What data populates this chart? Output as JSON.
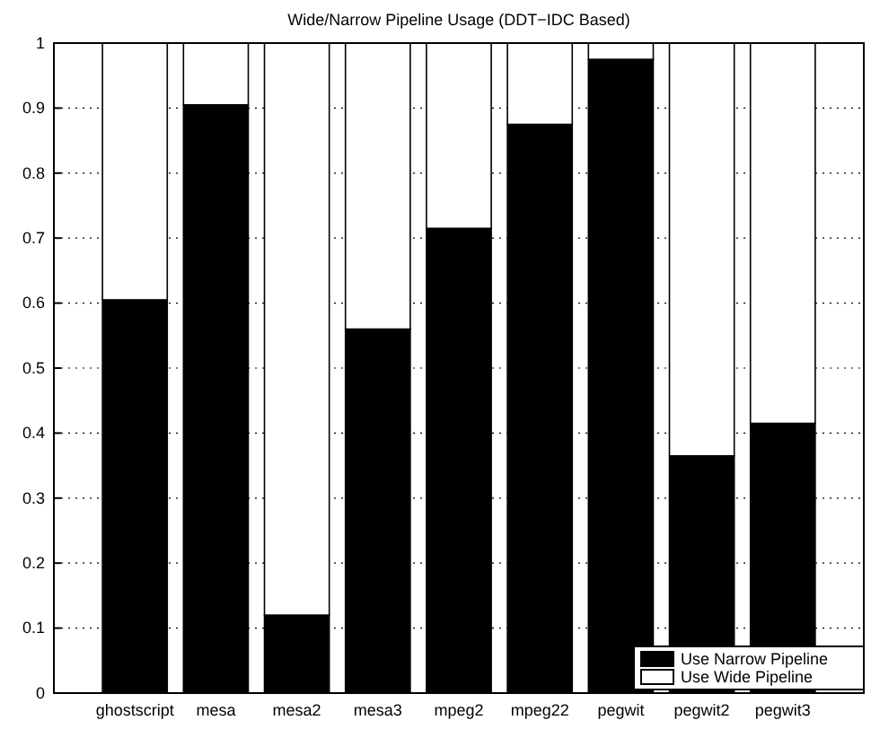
{
  "chart_data": {
    "type": "bar",
    "title": "Wide/Narrow Pipeline Usage (DDT−IDC Based)",
    "categories": [
      "ghostscript",
      "mesa",
      "mesa2",
      "mesa3",
      "mpeg2",
      "mpeg22",
      "pegwit",
      "pegwit2",
      "pegwit3"
    ],
    "stacked": true,
    "series": [
      {
        "name": "Use Narrow Pipeline",
        "color": "#000000",
        "values": [
          0.605,
          0.905,
          0.12,
          0.56,
          0.715,
          0.875,
          0.975,
          0.365,
          0.415
        ]
      },
      {
        "name": "Use Wide Pipeline",
        "color": "#ffffff",
        "values": [
          0.395,
          0.095,
          0.88,
          0.44,
          0.285,
          0.125,
          0.025,
          0.635,
          0.585
        ]
      }
    ],
    "ylim": [
      0,
      1
    ],
    "yticks": [
      0,
      0.1,
      0.2,
      0.3,
      0.4,
      0.5,
      0.6,
      0.7,
      0.8,
      0.9,
      1
    ],
    "grid": "y",
    "legend": "bottom right"
  }
}
